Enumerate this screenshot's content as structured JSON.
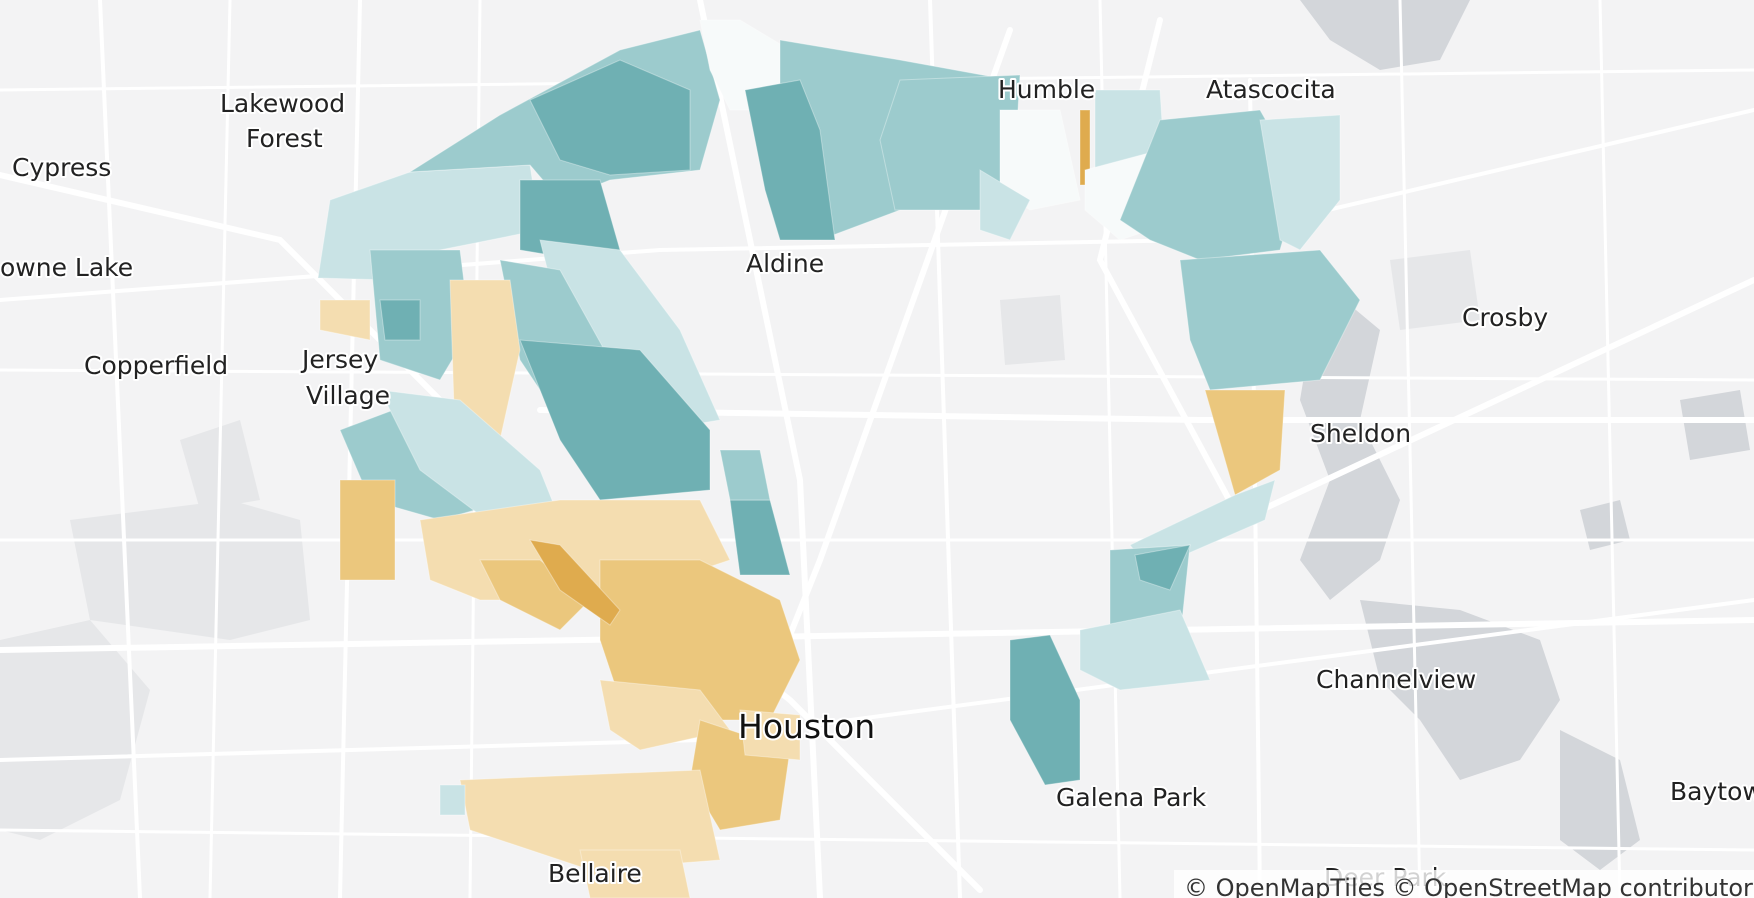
{
  "map": {
    "colors": {
      "background": "#f3f3f4",
      "road": "#ffffff",
      "water": "#d3d6da",
      "park": "#e6e7e9",
      "teal_light": "#c9e3e5",
      "teal_mid": "#9ccbcd",
      "teal_dark": "#6fb0b3",
      "orange_light": "#f4ddb0",
      "orange_mid": "#ebc77d",
      "orange_dark": "#dfab4e",
      "pale": "#f7fafa"
    },
    "labels": [
      {
        "key": "cypress",
        "text": "Cypress"
      },
      {
        "key": "lakewood",
        "text": "Lakewood"
      },
      {
        "key": "forest",
        "text": "Forest"
      },
      {
        "key": "towne_lake",
        "text": "owne Lake"
      },
      {
        "key": "copperfield",
        "text": "Copperfield"
      },
      {
        "key": "jersey",
        "text": "Jersey"
      },
      {
        "key": "village",
        "text": "Village"
      },
      {
        "key": "aldine",
        "text": "Aldine"
      },
      {
        "key": "humble",
        "text": "Humble"
      },
      {
        "key": "atascocita",
        "text": "Atascocita"
      },
      {
        "key": "crosby",
        "text": "Crosby"
      },
      {
        "key": "sheldon",
        "text": "Sheldon"
      },
      {
        "key": "channelview",
        "text": "Channelview"
      },
      {
        "key": "houston",
        "text": "Houston"
      },
      {
        "key": "galena_park",
        "text": "Galena Park"
      },
      {
        "key": "baytown",
        "text": "Baytow"
      },
      {
        "key": "bellaire",
        "text": "Bellaire"
      },
      {
        "key": "deer_park",
        "text": "Deer Park"
      }
    ],
    "attribution": "© OpenMapTiles © OpenStreetMap contributors"
  }
}
